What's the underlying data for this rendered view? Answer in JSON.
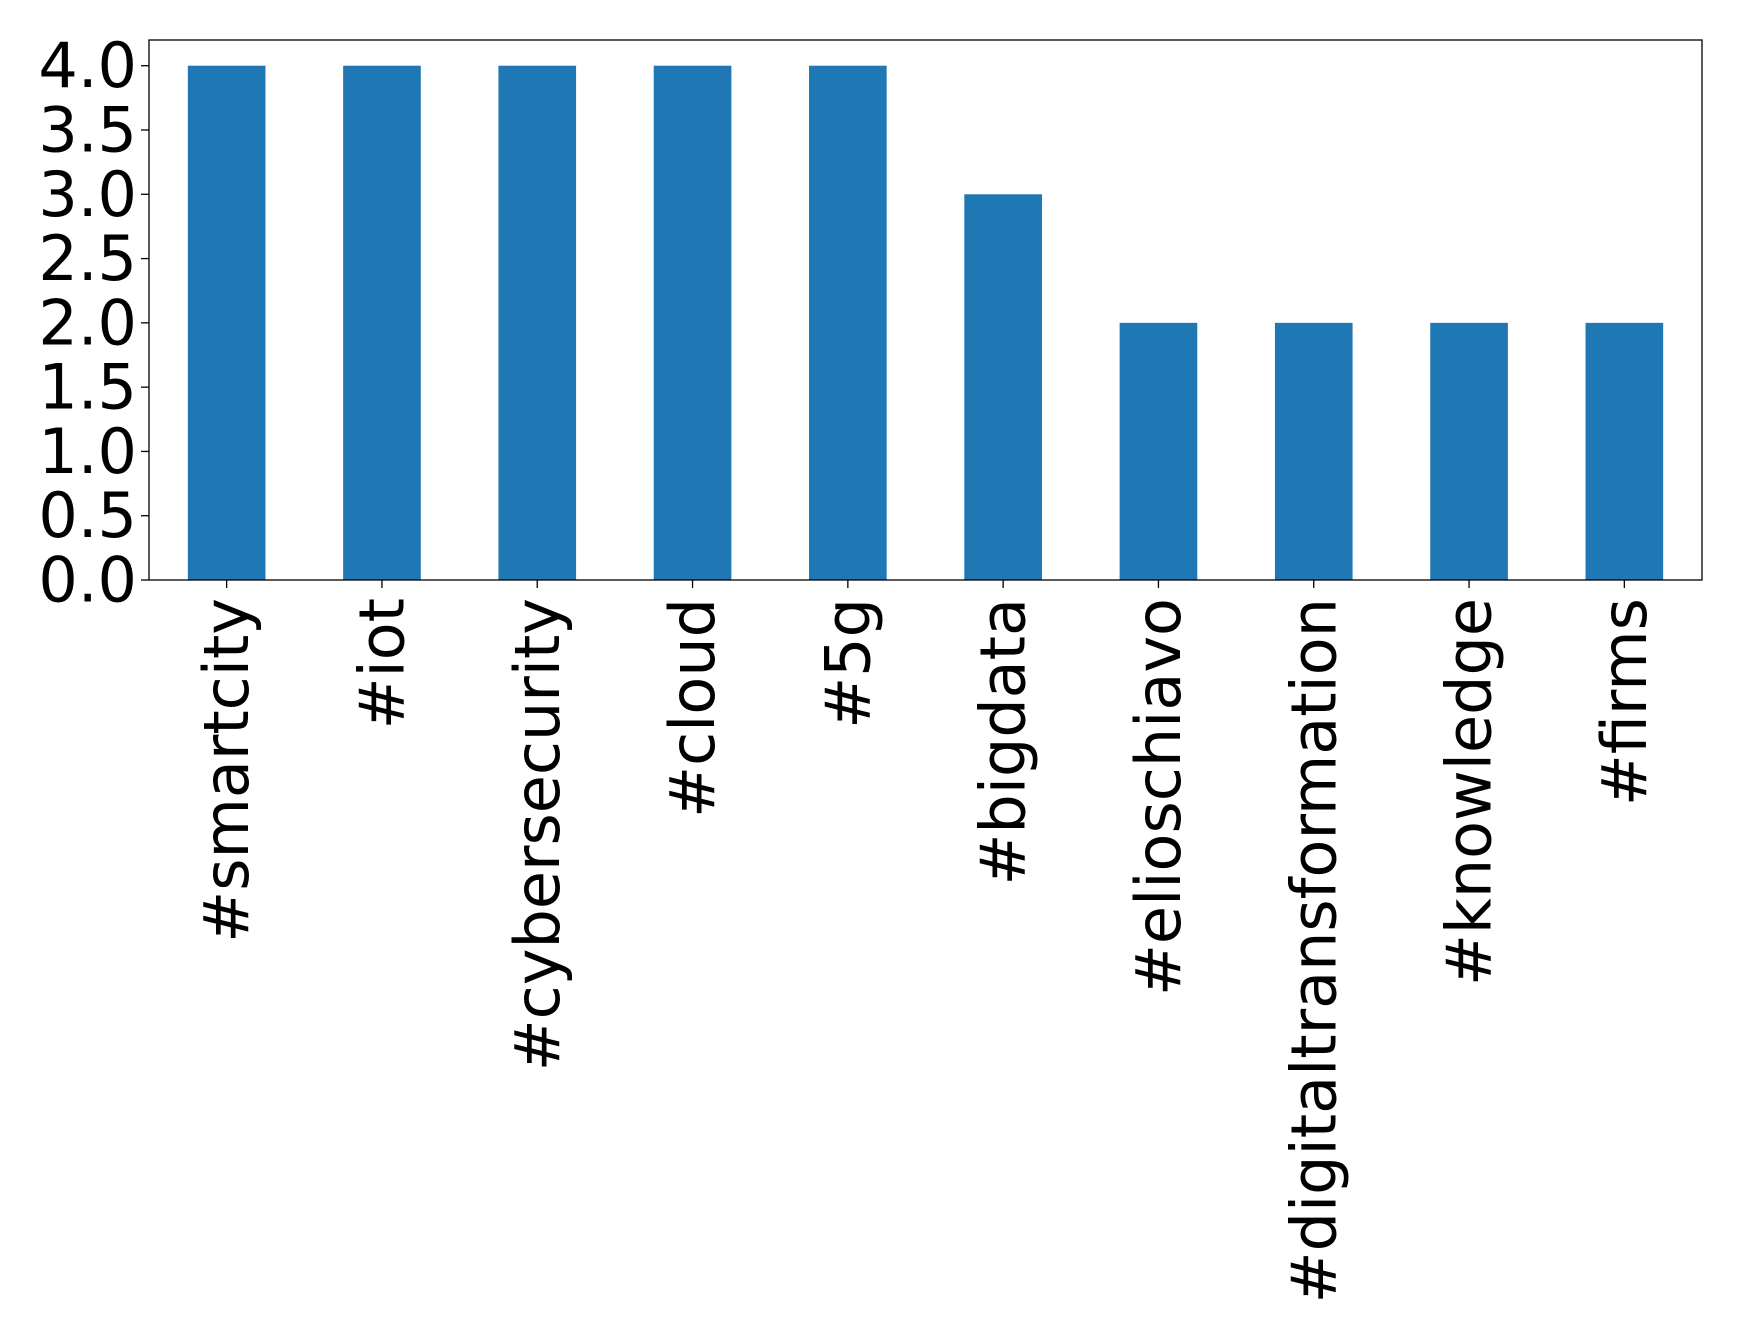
{
  "chart_data": {
    "type": "bar",
    "title": "",
    "xlabel": "",
    "ylabel": "",
    "categories": [
      "#smartcity",
      "#iot",
      "#cybersecurity",
      "#cloud",
      "#5g",
      "#bigdata",
      "#elioschiavo",
      "#digitaltransformation",
      "#knowledge",
      "#firms"
    ],
    "values": [
      4,
      4,
      4,
      4,
      4,
      3,
      2,
      2,
      2,
      2
    ],
    "ylim": [
      0,
      4.2
    ],
    "yticks": [
      "0.0",
      "0.5",
      "1.0",
      "1.5",
      "2.0",
      "2.5",
      "3.0",
      "3.5",
      "4.0"
    ],
    "grid": false,
    "legend": "none",
    "x_label_rotation": "vertical",
    "colors": {
      "bar": "#1f77b4",
      "axis": "#000000",
      "background": "#ffffff"
    }
  }
}
